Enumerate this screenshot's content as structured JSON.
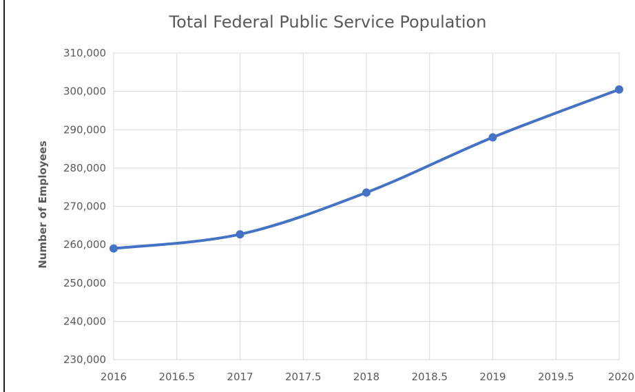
{
  "chart_data": {
    "type": "scatter",
    "title": "Total Federal Public Service Population",
    "xlabel": "",
    "ylabel": "Number of Employees",
    "xlim": [
      2016,
      2020
    ],
    "ylim": [
      230000,
      310000
    ],
    "x_ticks": [
      2016,
      2016.5,
      2017,
      2017.5,
      2018,
      2018.5,
      2019,
      2019.5,
      2020
    ],
    "x_tick_labels": [
      "2016",
      "2016.5",
      "2017",
      "2017.5",
      "2018",
      "2018.5",
      "2019",
      "2019.5",
      "2020"
    ],
    "y_ticks": [
      230000,
      240000,
      250000,
      260000,
      270000,
      280000,
      290000,
      300000,
      310000
    ],
    "y_tick_labels": [
      "230,000",
      "240,000",
      "250,000",
      "260,000",
      "270,000",
      "280,000",
      "290,000",
      "300,000",
      "310,000"
    ],
    "grid": true,
    "smoothed_line": true,
    "series": [
      {
        "color": "#4472c4",
        "points": [
          {
            "x": 2016,
            "y": 259000
          },
          {
            "x": 2017,
            "y": 262700
          },
          {
            "x": 2018,
            "y": 273600
          },
          {
            "x": 2019,
            "y": 288000
          },
          {
            "x": 2020,
            "y": 300500
          }
        ]
      }
    ]
  }
}
